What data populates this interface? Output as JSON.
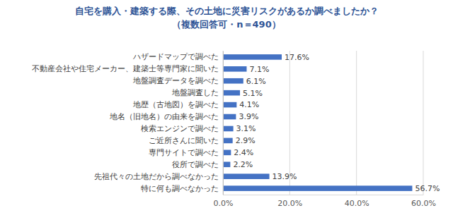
{
  "chart_data": {
    "type": "bar",
    "orientation": "horizontal",
    "title": "自宅を購入・建築する際、その土地に災害リスクがあるか調べましたか？",
    "subtitle": "（複数回答可・n＝490）",
    "categories": [
      "ハザードマップで調べた",
      "不動産会社や住宅メーカー、建築士等専門家に聞いた",
      "地盤調査データを調べた",
      "地盤調査した",
      "地歴（古地図）を調べた",
      "地名（旧地名）の由来を調べた",
      "検索エンジンで調べた",
      "ご近所さんに聞いた",
      "専門サイトで調べた",
      "役所で調べた",
      "先祖代々の土地だから調べなかった",
      "特に何も調べなかった"
    ],
    "values": [
      17.6,
      7.1,
      6.1,
      5.1,
      4.1,
      3.9,
      3.1,
      2.9,
      2.4,
      2.2,
      13.9,
      56.7
    ],
    "value_labels": [
      "17.6%",
      "7.1%",
      "6.1%",
      "5.1%",
      "4.1%",
      "3.9%",
      "3.1%",
      "2.9%",
      "2.4%",
      "2.2%",
      "13.9%",
      "56.7%"
    ],
    "color": "#4472c4",
    "xlim": [
      0,
      60
    ],
    "xticks": [
      {
        "value": 0,
        "label": "0.0%"
      },
      {
        "value": 20,
        "label": "20.0%"
      },
      {
        "value": 40,
        "label": "40.0%"
      },
      {
        "value": 60,
        "label": "60.0%"
      }
    ],
    "grid": true,
    "data_labels": true
  }
}
